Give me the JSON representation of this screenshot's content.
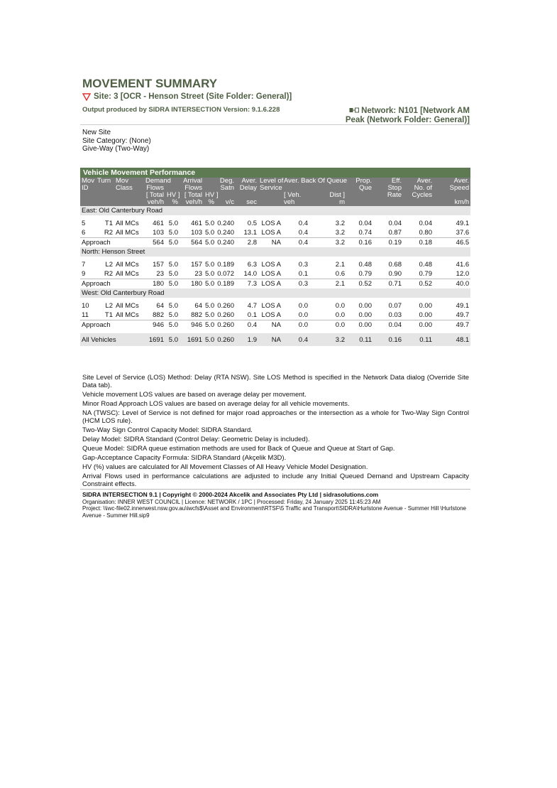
{
  "header": {
    "title": "MOVEMENT SUMMARY",
    "site": "Site: 3 [OCR - Henson Street (Site Folder: General)]",
    "output": "Output produced by SIDRA INTERSECTION Version: 9.1.6.228",
    "network_line1": "Network: N101 [Network AM",
    "network_line2": "Peak (Network Folder: General)]",
    "site_icon": "give-way-triangle-icon",
    "network_icon": "network-icon",
    "accent": "#4e5f44"
  },
  "site_info": [
    "New Site",
    "Site Category: (None)",
    "Give-Way (Two-Way)"
  ],
  "table": {
    "title": "Vehicle Movement Performance",
    "headers": [
      [
        "Mov",
        "ID",
        "",
        ""
      ],
      [
        "Turn",
        "",
        "",
        ""
      ],
      [
        "Mov",
        "Class",
        "",
        ""
      ],
      [
        "Demand",
        "Flows",
        "[ Total",
        "veh/h"
      ],
      [
        "",
        "",
        "HV ]",
        "%"
      ],
      [
        "Arrival",
        "Flows",
        "[ Total",
        "veh/h"
      ],
      [
        "",
        "",
        "HV ]",
        "%"
      ],
      [
        "Deg.",
        "Satn",
        "",
        "v/c"
      ],
      [
        "Aver.",
        "Delay",
        "",
        "sec"
      ],
      [
        "Level of",
        "Service",
        "",
        ""
      ],
      [
        "Aver. Back Of Queue",
        "",
        "[ Veh.",
        "veh"
      ],
      [
        "",
        "",
        "Dist ]",
        "m"
      ],
      [
        "Prop.",
        "Que",
        "",
        ""
      ],
      [
        "Eff.",
        "Stop",
        "Rate",
        ""
      ],
      [
        "Aver.",
        "No. of",
        "Cycles",
        ""
      ],
      [
        "Aver.",
        "Speed",
        "",
        "km/h"
      ]
    ],
    "sections": [
      {
        "name": "East: Old Canterbury Road",
        "rows": [
          [
            "5",
            "T1",
            "All MCs",
            "461",
            "5.0",
            "461",
            "5.0",
            "0.240",
            "0.5",
            "LOS A",
            "0.4",
            "3.2",
            "0.04",
            "0.04",
            "0.04",
            "49.1"
          ],
          [
            "6",
            "R2",
            "All MCs",
            "103",
            "5.0",
            "103",
            "5.0",
            "0.240",
            "13.1",
            "LOS A",
            "0.4",
            "3.2",
            "0.74",
            "0.87",
            "0.80",
            "37.6"
          ]
        ],
        "approach": [
          "Approach",
          "564",
          "5.0",
          "564",
          "5.0",
          "0.240",
          "2.8",
          "NA",
          "0.4",
          "3.2",
          "0.16",
          "0.19",
          "0.18",
          "46.5"
        ]
      },
      {
        "name": "North: Henson Street",
        "rows": [
          [
            "7",
            "L2",
            "All MCs",
            "157",
            "5.0",
            "157",
            "5.0",
            "0.189",
            "6.3",
            "LOS A",
            "0.3",
            "2.1",
            "0.48",
            "0.68",
            "0.48",
            "41.6"
          ],
          [
            "9",
            "R2",
            "All MCs",
            "23",
            "5.0",
            "23",
            "5.0",
            "0.072",
            "14.0",
            "LOS A",
            "0.1",
            "0.6",
            "0.79",
            "0.90",
            "0.79",
            "12.0"
          ]
        ],
        "approach": [
          "Approach",
          "180",
          "5.0",
          "180",
          "5.0",
          "0.189",
          "7.3",
          "LOS A",
          "0.3",
          "2.1",
          "0.52",
          "0.71",
          "0.52",
          "40.0"
        ]
      },
      {
        "name": "West: Old Canterbury Road",
        "rows": [
          [
            "10",
            "L2",
            "All MCs",
            "64",
            "5.0",
            "64",
            "5.0",
            "0.260",
            "4.7",
            "LOS A",
            "0.0",
            "0.0",
            "0.00",
            "0.07",
            "0.00",
            "49.1"
          ],
          [
            "11",
            "T1",
            "All MCs",
            "882",
            "5.0",
            "882",
            "5.0",
            "0.260",
            "0.1",
            "LOS A",
            "0.0",
            "0.0",
            "0.00",
            "0.03",
            "0.00",
            "49.7"
          ]
        ],
        "approach": [
          "Approach",
          "946",
          "5.0",
          "946",
          "5.0",
          "0.260",
          "0.4",
          "NA",
          "0.0",
          "0.0",
          "0.00",
          "0.04",
          "0.00",
          "49.7"
        ]
      }
    ],
    "all_vehicles": [
      "All Vehicles",
      "1691",
      "5.0",
      "1691",
      "5.0",
      "0.260",
      "1.9",
      "NA",
      "0.4",
      "3.2",
      "0.11",
      "0.16",
      "0.11",
      "48.1"
    ]
  },
  "notes": [
    "Site Level of Service (LOS) Method: Delay (RTA NSW). Site LOS Method is specified in the Network Data dialog (Override Site Data tab).",
    "Vehicle movement LOS values are based on average delay per movement.",
    "Minor Road Approach LOS values are based on average delay for all vehicle movements.",
    "NA (TWSC): Level of Service is not defined for major road approaches or the intersection as a whole for Two-Way Sign Control (HCM LOS rule).",
    "Two-Way Sign Control Capacity Model: SIDRA Standard.",
    "Delay Model: SIDRA Standard (Control Delay: Geometric Delay is included).",
    "Queue Model: SIDRA queue estimation methods are used for Back of Queue and Queue at Start of Gap.",
    "Gap-Acceptance Capacity Formula: SIDRA Standard (Akçelik M3D).",
    "HV (%) values are calculated for All Movement Classes of All Heavy Vehicle Model Designation.",
    "Arrival Flows used in performance calculations are adjusted to include any Initial Queued Demand and Upstream Capacity Constraint effects."
  ],
  "footer": {
    "line1": "SIDRA INTERSECTION 9.1  |  Copyright © 2000-2024 Akcelik and Associates Pty Ltd  |  sidrasolutions.com",
    "line2": "Organisation: INNER WEST COUNCIL  |  Licence: NETWORK / 1PC  |  Processed: Friday, 24 January 2025 11:45:23 AM",
    "line3": "Project:  \\\\iwc-file02.innerwest.nsw.gov.au\\iwcfs$\\Asset and Environment\\RTSF\\5 Traffic and Transport\\SIDRA\\Hurlstone Avenue - Summer Hill \\Hurlstone Avenue - Summer Hill.sip9"
  }
}
